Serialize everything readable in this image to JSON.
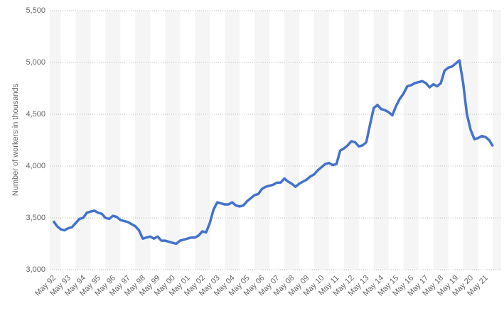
{
  "chart_data": {
    "type": "line",
    "y_label": "Number of workers in thousands",
    "ylim": [
      3000,
      5500
    ],
    "yticks": [
      {
        "value": 3000,
        "label": "3,000"
      },
      {
        "value": 3500,
        "label": "3,500"
      },
      {
        "value": 4000,
        "label": "4,000"
      },
      {
        "value": 4500,
        "label": "4,500"
      },
      {
        "value": 5000,
        "label": "5,000"
      },
      {
        "value": 5500,
        "label": "5,500"
      }
    ],
    "grid": true,
    "categories": [
      "May 92",
      null,
      null,
      null,
      "May 93",
      null,
      null,
      null,
      "May 94",
      null,
      null,
      null,
      "May 95",
      null,
      null,
      null,
      "May 96",
      null,
      null,
      null,
      "May 97",
      null,
      null,
      null,
      "May 98",
      null,
      null,
      null,
      "May 99",
      null,
      null,
      null,
      "May 00",
      null,
      null,
      null,
      "May 01",
      null,
      null,
      null,
      "May 02",
      null,
      null,
      null,
      "May 03",
      null,
      null,
      null,
      "May 04",
      null,
      null,
      null,
      "May 05",
      null,
      null,
      null,
      "May 06",
      null,
      null,
      null,
      "May 07",
      null,
      null,
      null,
      "May 08",
      null,
      null,
      null,
      "May 09",
      null,
      null,
      null,
      "May 10",
      null,
      null,
      null,
      "May 11",
      null,
      null,
      null,
      "May 12",
      null,
      null,
      null,
      "May 13",
      null,
      null,
      null,
      "May 14",
      null,
      null,
      null,
      "May 15",
      null,
      null,
      null,
      "May 16",
      null,
      null,
      null,
      "May 17",
      null,
      null,
      null,
      "May 18",
      null,
      null,
      null,
      "May 19",
      null,
      null,
      null,
      "May 20",
      null,
      null,
      null,
      "May 21",
      null,
      null
    ],
    "series": [
      {
        "color": "#4472ca",
        "values": [
          3470,
          3420,
          3390,
          3380,
          3400,
          3410,
          3450,
          3490,
          3500,
          3550,
          3560,
          3570,
          3550,
          3540,
          3500,
          3490,
          3520,
          3510,
          3480,
          3470,
          3460,
          3440,
          3420,
          3380,
          3300,
          3310,
          3320,
          3300,
          3320,
          3280,
          3280,
          3270,
          3260,
          3250,
          3280,
          3290,
          3300,
          3310,
          3310,
          3330,
          3370,
          3360,
          3450,
          3580,
          3650,
          3640,
          3630,
          3630,
          3650,
          3620,
          3610,
          3620,
          3660,
          3690,
          3720,
          3730,
          3780,
          3800,
          3810,
          3820,
          3840,
          3840,
          3880,
          3850,
          3830,
          3800,
          3830,
          3850,
          3870,
          3900,
          3920,
          3960,
          3990,
          4020,
          4030,
          4010,
          4020,
          4150,
          4170,
          4200,
          4240,
          4230,
          4190,
          4200,
          4230,
          4400,
          4560,
          4590,
          4550,
          4540,
          4520,
          4490,
          4580,
          4650,
          4700,
          4770,
          4780,
          4800,
          4810,
          4820,
          4800,
          4760,
          4790,
          4770,
          4800,
          4920,
          4950,
          4960,
          4990,
          5020,
          4800,
          4500,
          4350,
          4260,
          4270,
          4290,
          4280,
          4250,
          4190
        ]
      }
    ]
  }
}
